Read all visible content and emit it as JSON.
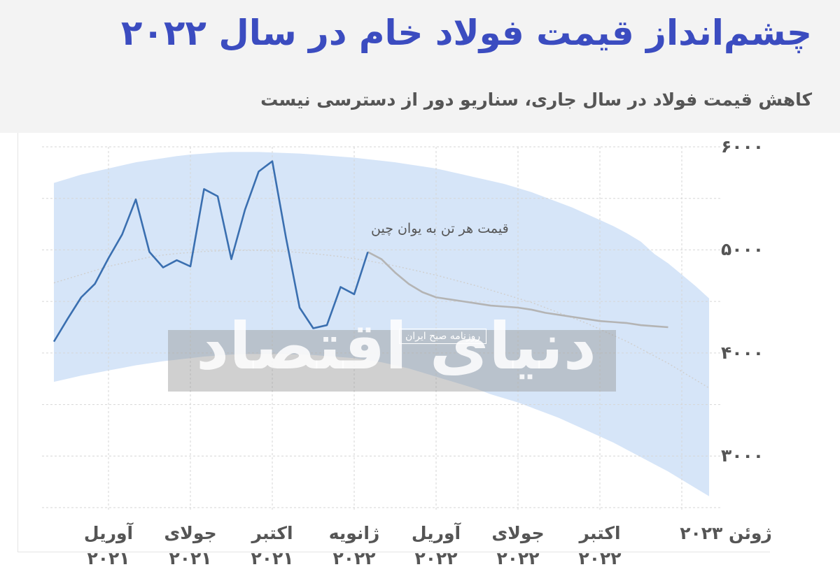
{
  "chart_data": {
    "type": "line",
    "title": "چشم‌انداز قیمت فولاد خام در سال ۲۰۲۲",
    "subtitle": "کاهش قیمت فولاد در سال جاری، سناریو دور از دسترسی نیست",
    "annotation": "قیمت هر تن به یوان چین",
    "watermark": "دنیای اقتصاد",
    "watermark_sub": "روزنامه صبح ایران",
    "categories": [
      null,
      null,
      null,
      null,
      "آوریل ۲۰۲۱",
      null,
      null,
      null,
      null,
      null,
      "جولای ۲۰۲۱",
      null,
      null,
      null,
      null,
      null,
      "اکتبر ۲۰۲۱",
      null,
      null,
      null,
      null,
      null,
      "ژانویه ۲۰۲۲",
      null,
      null,
      null,
      null,
      null,
      "آوریل ۲۰۲۲",
      null,
      null,
      null,
      null,
      null,
      "جولای ۲۰۲۲",
      null,
      null,
      null,
      null,
      null,
      "اکتبر ۲۰۲۲",
      null,
      null,
      null,
      null,
      null,
      "ژوئن ۲۰۲۳",
      null,
      null
    ],
    "ylim": [
      2500,
      6000
    ],
    "yticks": [
      {
        "value": 3000,
        "label": "۳۰۰۰"
      },
      {
        "value": 4000,
        "label": "۴۰۰۰"
      },
      {
        "value": 5000,
        "label": "۵۰۰۰"
      },
      {
        "value": 6000,
        "label": "۶۰۰۰"
      }
    ],
    "minor_yticks": [
      2500,
      3500,
      4500,
      5500
    ],
    "grid": true,
    "band": {
      "color": "#cfe0f7",
      "upper": [
        5650,
        5690,
        5730,
        5760,
        5790,
        5820,
        5850,
        5870,
        5890,
        5910,
        5925,
        5935,
        5945,
        5950,
        5950,
        5950,
        5945,
        5940,
        5935,
        5925,
        5915,
        5905,
        5895,
        5880,
        5865,
        5850,
        5830,
        5810,
        5790,
        5760,
        5730,
        5700,
        5670,
        5640,
        5600,
        5560,
        5510,
        5460,
        5410,
        5350,
        5290,
        5230,
        5160,
        5080,
        4960,
        4870,
        4760,
        4650,
        4530
      ],
      "lower": [
        3720,
        3750,
        3780,
        3805,
        3830,
        3855,
        3880,
        3900,
        3920,
        3935,
        3950,
        3965,
        3975,
        3985,
        3990,
        3990,
        3990,
        3990,
        3985,
        3980,
        3970,
        3960,
        3950,
        3930,
        3910,
        3880,
        3850,
        3810,
        3770,
        3730,
        3690,
        3650,
        3600,
        3560,
        3520,
        3470,
        3420,
        3370,
        3310,
        3250,
        3190,
        3130,
        3060,
        2990,
        2920,
        2850,
        2770,
        2690,
        2610
      ]
    },
    "series": [
      {
        "color": "#d0d0d0",
        "style": "dotted",
        "values": [
          4680,
          4720,
          4760,
          4800,
          4840,
          4870,
          4900,
          4930,
          4950,
          4965,
          4975,
          4985,
          4990,
          4995,
          4995,
          4995,
          4990,
          4985,
          4975,
          4965,
          4950,
          4935,
          4915,
          4895,
          4870,
          4845,
          4815,
          4785,
          4755,
          4720,
          4685,
          4650,
          4610,
          4570,
          4530,
          4490,
          4440,
          4390,
          4340,
          4290,
          4230,
          4170,
          4110,
          4040,
          3970,
          3900,
          3820,
          3740,
          3660
        ]
      },
      {
        "color": "#b4b4b4",
        "style": "solid",
        "values": [
          null,
          null,
          null,
          null,
          null,
          null,
          null,
          null,
          null,
          null,
          null,
          null,
          null,
          null,
          null,
          null,
          null,
          null,
          null,
          null,
          null,
          null,
          null,
          4980,
          4910,
          4780,
          4670,
          4590,
          4540,
          4520,
          4500,
          4480,
          4460,
          4450,
          4440,
          4420,
          4390,
          4370,
          4350,
          4330,
          4310,
          4300,
          4290,
          4270,
          4260,
          4250,
          null,
          null,
          null
        ]
      },
      {
        "color": "#3a6fb0",
        "style": "solid",
        "values": [
          4110,
          4330,
          4540,
          4670,
          4920,
          5150,
          5490,
          4980,
          4830,
          4900,
          4840,
          5590,
          5520,
          4910,
          5390,
          5760,
          5860,
          5120,
          4440,
          4240,
          4270,
          4640,
          4570,
          4980,
          null,
          null,
          null,
          null,
          null,
          null,
          null,
          null,
          null,
          null,
          null,
          null,
          null,
          null,
          null,
          null,
          null,
          null,
          null,
          null,
          null,
          null,
          null,
          null,
          null
        ]
      }
    ]
  }
}
